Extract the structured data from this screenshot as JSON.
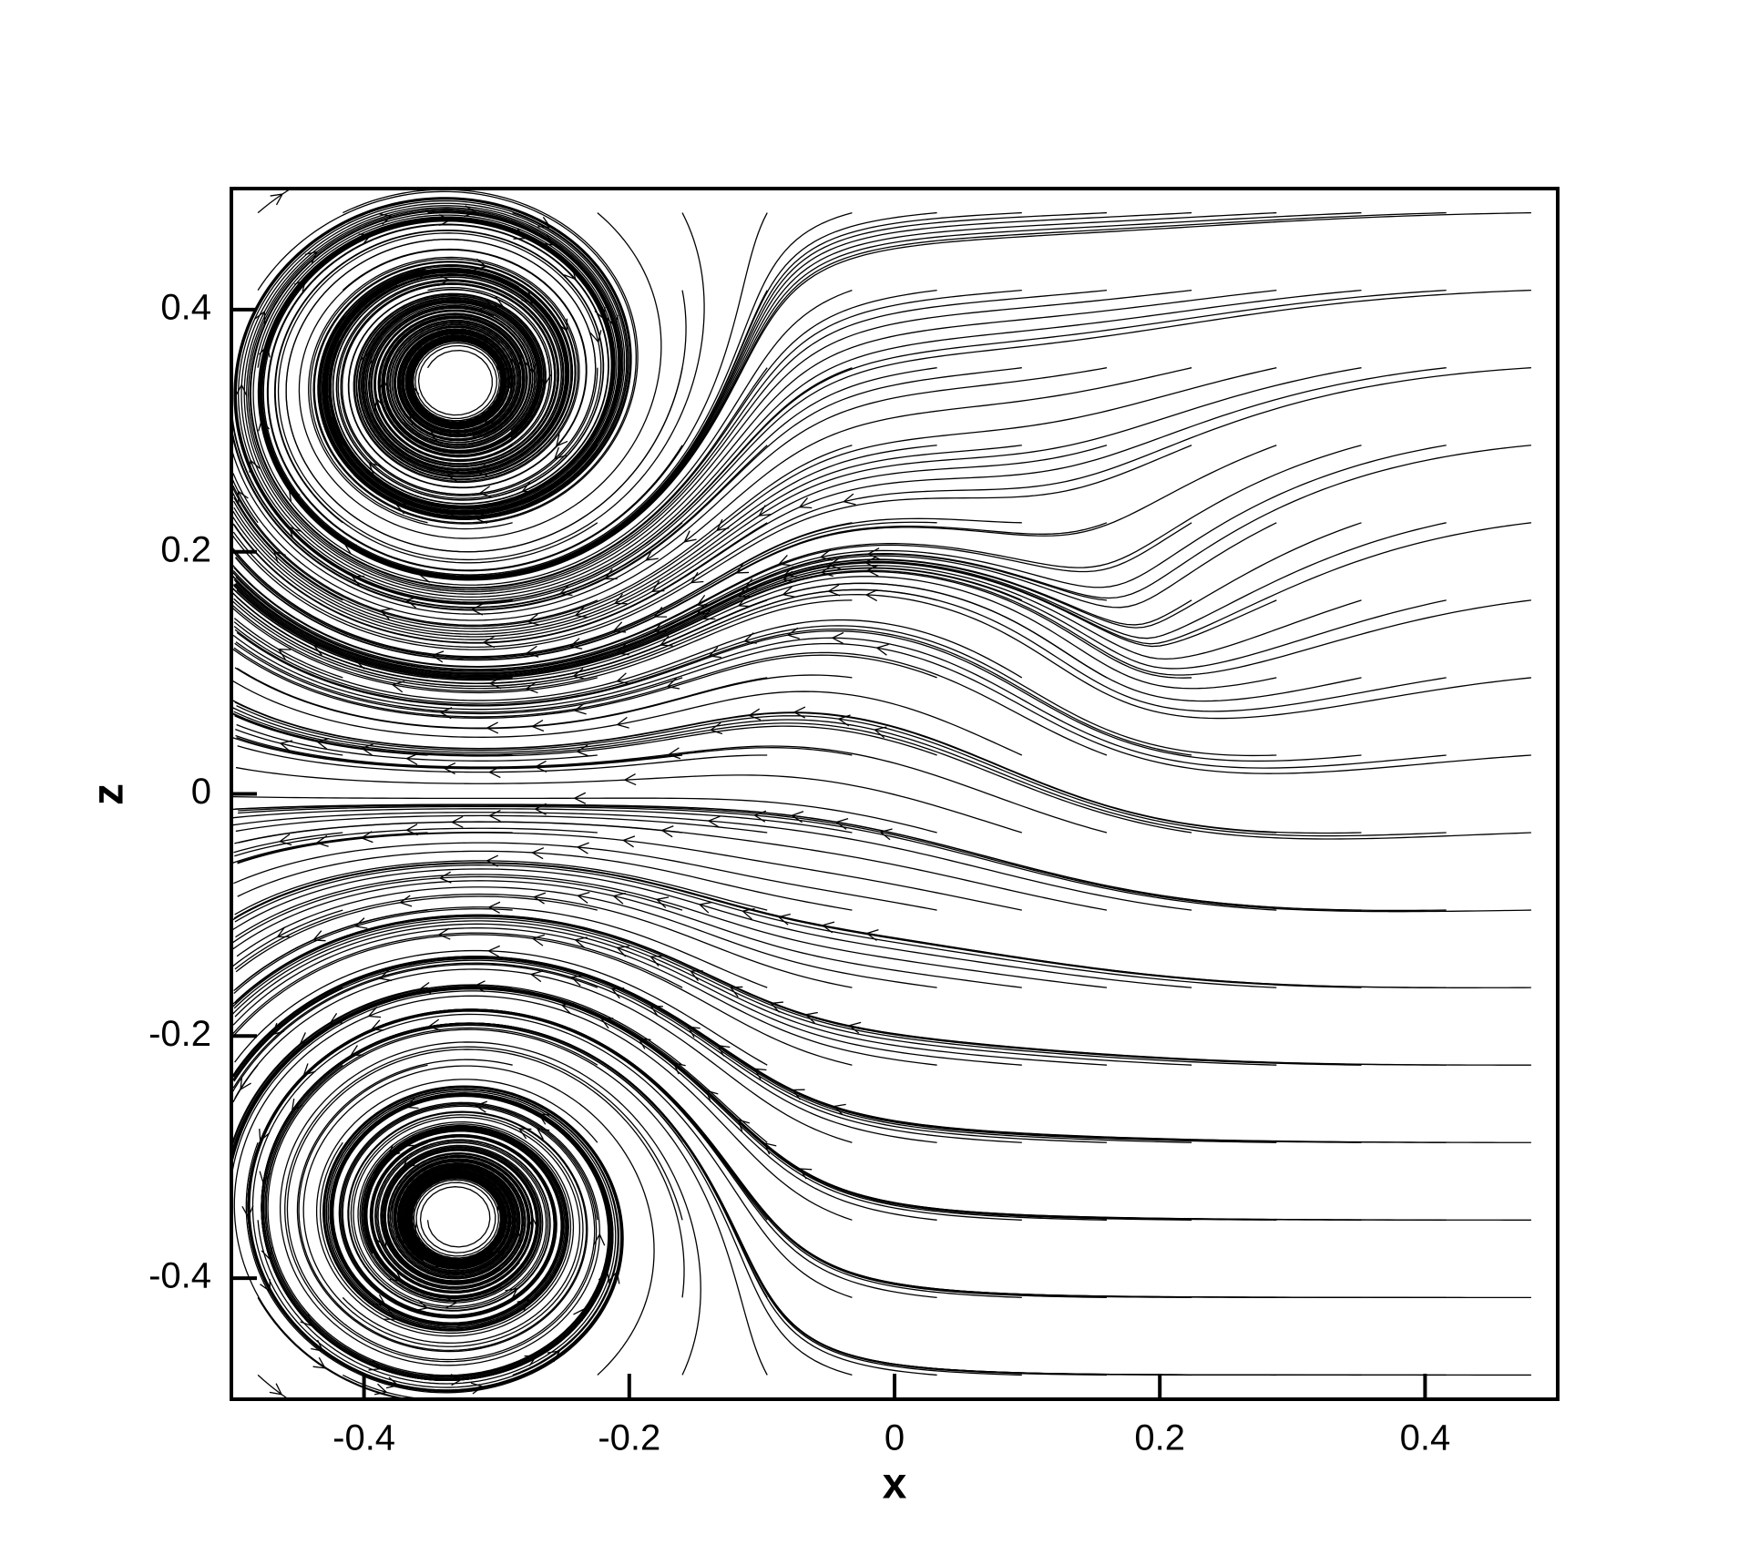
{
  "chart_data": {
    "type": "streamline",
    "xlabel": "x",
    "ylabel": "z",
    "xlim": [
      -0.5,
      0.5
    ],
    "ylim": [
      -0.5,
      0.5
    ],
    "xticks": [
      -0.4,
      -0.2,
      0,
      0.2,
      0.4
    ],
    "yticks": [
      -0.4,
      -0.2,
      0,
      0.2,
      0.4
    ],
    "color": "#000000"
  }
}
